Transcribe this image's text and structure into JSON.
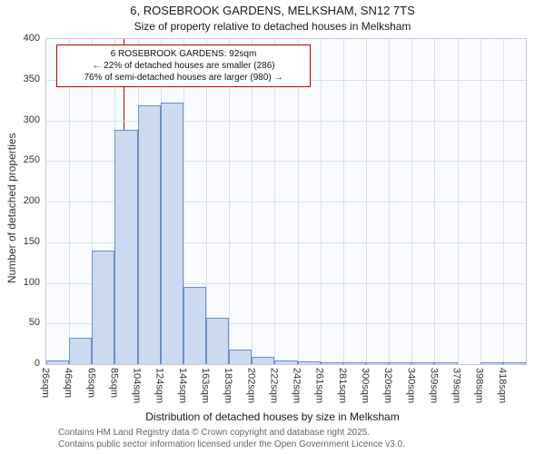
{
  "title": "6, ROSEBROOK GARDENS, MELKSHAM, SN12 7TS",
  "subtitle": "Size of property relative to detached houses in Melksham",
  "annotation": {
    "line1": "6 ROSEBROOK GARDENS: 92sqm",
    "line2": "← 22% of detached houses are smaller (286)",
    "line3": "76% of semi-detached houses are larger (980) →"
  },
  "marker": {
    "sqm": 92,
    "color": "#aa1122"
  },
  "chart_data": {
    "type": "bar",
    "title": "Size of property relative to detached houses in Melksham",
    "categories": [
      "26sqm",
      "46sqm",
      "65sqm",
      "85sqm",
      "104sqm",
      "124sqm",
      "144sqm",
      "163sqm",
      "183sqm",
      "202sqm",
      "222sqm",
      "242sqm",
      "261sqm",
      "281sqm",
      "300sqm",
      "320sqm",
      "340sqm",
      "359sqm",
      "379sqm",
      "398sqm",
      "418sqm"
    ],
    "values": [
      5,
      32,
      140,
      288,
      318,
      322,
      95,
      57,
      18,
      9,
      4,
      3,
      2,
      1,
      2,
      1,
      1,
      1,
      0,
      1,
      2
    ],
    "xlabel": "Distribution of detached houses by size in Melksham",
    "ylabel": "Number of detached properties",
    "ylim": [
      0,
      400
    ],
    "ytick_step": 50,
    "bar_fill": "#ccdaf1",
    "bar_stroke": "#6a8fc8",
    "grid": true,
    "legend": false
  },
  "footer": {
    "line1": "Contains HM Land Registry data © Crown copyright and database right 2025.",
    "line2": "Contains public sector information licensed under the Open Government Licence v3.0."
  }
}
